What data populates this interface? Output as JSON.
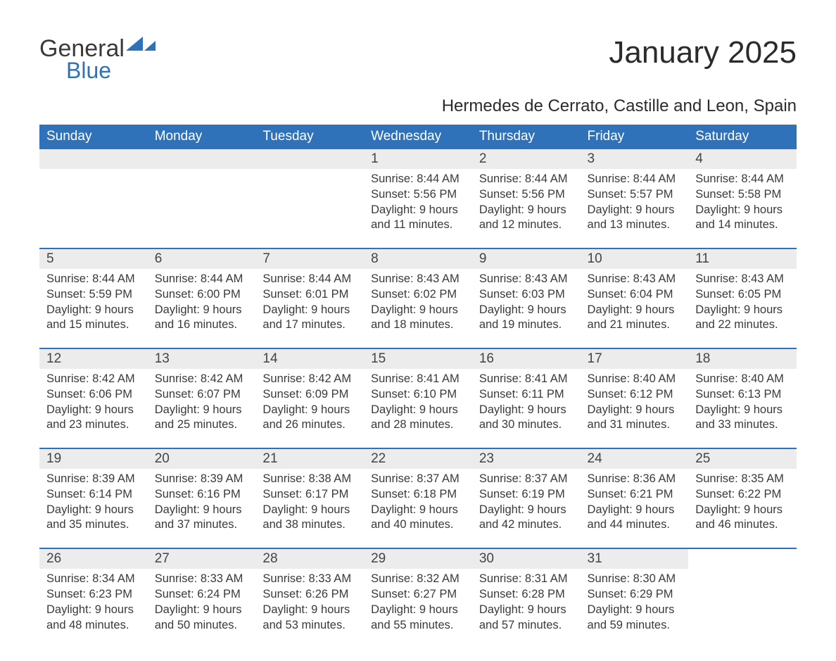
{
  "logo": {
    "general": "General",
    "blue": "Blue"
  },
  "title": "January 2025",
  "subtitle": "Hermedes de Cerrato, Castille and Leon, Spain",
  "colors": {
    "header_bg": "#2f72b9",
    "header_text": "#ffffff",
    "daynum_bg": "#ececec",
    "text": "#3a3a3a",
    "rule": "#2f72b9",
    "page_bg": "#ffffff"
  },
  "fontsizes": {
    "title": 44,
    "subtitle": 24,
    "weekday": 19,
    "daynum": 19,
    "body": 16.5
  },
  "weekdays": [
    "Sunday",
    "Monday",
    "Tuesday",
    "Wednesday",
    "Thursday",
    "Friday",
    "Saturday"
  ],
  "weeks": [
    [
      null,
      null,
      null,
      {
        "num": "1",
        "sunrise": "Sunrise: 8:44 AM",
        "sunset": "Sunset: 5:56 PM",
        "day1": "Daylight: 9 hours",
        "day2": "and 11 minutes."
      },
      {
        "num": "2",
        "sunrise": "Sunrise: 8:44 AM",
        "sunset": "Sunset: 5:56 PM",
        "day1": "Daylight: 9 hours",
        "day2": "and 12 minutes."
      },
      {
        "num": "3",
        "sunrise": "Sunrise: 8:44 AM",
        "sunset": "Sunset: 5:57 PM",
        "day1": "Daylight: 9 hours",
        "day2": "and 13 minutes."
      },
      {
        "num": "4",
        "sunrise": "Sunrise: 8:44 AM",
        "sunset": "Sunset: 5:58 PM",
        "day1": "Daylight: 9 hours",
        "day2": "and 14 minutes."
      }
    ],
    [
      {
        "num": "5",
        "sunrise": "Sunrise: 8:44 AM",
        "sunset": "Sunset: 5:59 PM",
        "day1": "Daylight: 9 hours",
        "day2": "and 15 minutes."
      },
      {
        "num": "6",
        "sunrise": "Sunrise: 8:44 AM",
        "sunset": "Sunset: 6:00 PM",
        "day1": "Daylight: 9 hours",
        "day2": "and 16 minutes."
      },
      {
        "num": "7",
        "sunrise": "Sunrise: 8:44 AM",
        "sunset": "Sunset: 6:01 PM",
        "day1": "Daylight: 9 hours",
        "day2": "and 17 minutes."
      },
      {
        "num": "8",
        "sunrise": "Sunrise: 8:43 AM",
        "sunset": "Sunset: 6:02 PM",
        "day1": "Daylight: 9 hours",
        "day2": "and 18 minutes."
      },
      {
        "num": "9",
        "sunrise": "Sunrise: 8:43 AM",
        "sunset": "Sunset: 6:03 PM",
        "day1": "Daylight: 9 hours",
        "day2": "and 19 minutes."
      },
      {
        "num": "10",
        "sunrise": "Sunrise: 8:43 AM",
        "sunset": "Sunset: 6:04 PM",
        "day1": "Daylight: 9 hours",
        "day2": "and 21 minutes."
      },
      {
        "num": "11",
        "sunrise": "Sunrise: 8:43 AM",
        "sunset": "Sunset: 6:05 PM",
        "day1": "Daylight: 9 hours",
        "day2": "and 22 minutes."
      }
    ],
    [
      {
        "num": "12",
        "sunrise": "Sunrise: 8:42 AM",
        "sunset": "Sunset: 6:06 PM",
        "day1": "Daylight: 9 hours",
        "day2": "and 23 minutes."
      },
      {
        "num": "13",
        "sunrise": "Sunrise: 8:42 AM",
        "sunset": "Sunset: 6:07 PM",
        "day1": "Daylight: 9 hours",
        "day2": "and 25 minutes."
      },
      {
        "num": "14",
        "sunrise": "Sunrise: 8:42 AM",
        "sunset": "Sunset: 6:09 PM",
        "day1": "Daylight: 9 hours",
        "day2": "and 26 minutes."
      },
      {
        "num": "15",
        "sunrise": "Sunrise: 8:41 AM",
        "sunset": "Sunset: 6:10 PM",
        "day1": "Daylight: 9 hours",
        "day2": "and 28 minutes."
      },
      {
        "num": "16",
        "sunrise": "Sunrise: 8:41 AM",
        "sunset": "Sunset: 6:11 PM",
        "day1": "Daylight: 9 hours",
        "day2": "and 30 minutes."
      },
      {
        "num": "17",
        "sunrise": "Sunrise: 8:40 AM",
        "sunset": "Sunset: 6:12 PM",
        "day1": "Daylight: 9 hours",
        "day2": "and 31 minutes."
      },
      {
        "num": "18",
        "sunrise": "Sunrise: 8:40 AM",
        "sunset": "Sunset: 6:13 PM",
        "day1": "Daylight: 9 hours",
        "day2": "and 33 minutes."
      }
    ],
    [
      {
        "num": "19",
        "sunrise": "Sunrise: 8:39 AM",
        "sunset": "Sunset: 6:14 PM",
        "day1": "Daylight: 9 hours",
        "day2": "and 35 minutes."
      },
      {
        "num": "20",
        "sunrise": "Sunrise: 8:39 AM",
        "sunset": "Sunset: 6:16 PM",
        "day1": "Daylight: 9 hours",
        "day2": "and 37 minutes."
      },
      {
        "num": "21",
        "sunrise": "Sunrise: 8:38 AM",
        "sunset": "Sunset: 6:17 PM",
        "day1": "Daylight: 9 hours",
        "day2": "and 38 minutes."
      },
      {
        "num": "22",
        "sunrise": "Sunrise: 8:37 AM",
        "sunset": "Sunset: 6:18 PM",
        "day1": "Daylight: 9 hours",
        "day2": "and 40 minutes."
      },
      {
        "num": "23",
        "sunrise": "Sunrise: 8:37 AM",
        "sunset": "Sunset: 6:19 PM",
        "day1": "Daylight: 9 hours",
        "day2": "and 42 minutes."
      },
      {
        "num": "24",
        "sunrise": "Sunrise: 8:36 AM",
        "sunset": "Sunset: 6:21 PM",
        "day1": "Daylight: 9 hours",
        "day2": "and 44 minutes."
      },
      {
        "num": "25",
        "sunrise": "Sunrise: 8:35 AM",
        "sunset": "Sunset: 6:22 PM",
        "day1": "Daylight: 9 hours",
        "day2": "and 46 minutes."
      }
    ],
    [
      {
        "num": "26",
        "sunrise": "Sunrise: 8:34 AM",
        "sunset": "Sunset: 6:23 PM",
        "day1": "Daylight: 9 hours",
        "day2": "and 48 minutes."
      },
      {
        "num": "27",
        "sunrise": "Sunrise: 8:33 AM",
        "sunset": "Sunset: 6:24 PM",
        "day1": "Daylight: 9 hours",
        "day2": "and 50 minutes."
      },
      {
        "num": "28",
        "sunrise": "Sunrise: 8:33 AM",
        "sunset": "Sunset: 6:26 PM",
        "day1": "Daylight: 9 hours",
        "day2": "and 53 minutes."
      },
      {
        "num": "29",
        "sunrise": "Sunrise: 8:32 AM",
        "sunset": "Sunset: 6:27 PM",
        "day1": "Daylight: 9 hours",
        "day2": "and 55 minutes."
      },
      {
        "num": "30",
        "sunrise": "Sunrise: 8:31 AM",
        "sunset": "Sunset: 6:28 PM",
        "day1": "Daylight: 9 hours",
        "day2": "and 57 minutes."
      },
      {
        "num": "31",
        "sunrise": "Sunrise: 8:30 AM",
        "sunset": "Sunset: 6:29 PM",
        "day1": "Daylight: 9 hours",
        "day2": "and 59 minutes."
      },
      null
    ]
  ]
}
